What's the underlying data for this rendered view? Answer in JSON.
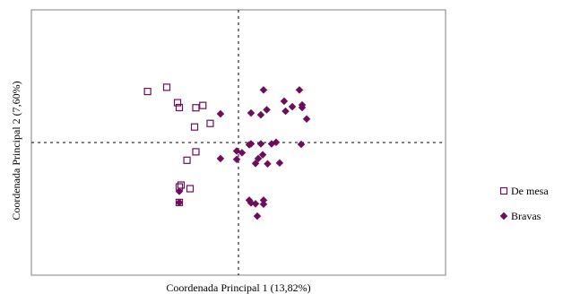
{
  "chart_data": {
    "type": "scatter",
    "xlabel": "Coordenada Principal 1 (13,82%)",
    "ylabel": "Coordenada Principal 2 (7,60%)",
    "xlim": [
      -1,
      1
    ],
    "ylim": [
      -1,
      1
    ],
    "grid": false,
    "reference_lines": {
      "x": 0,
      "y": 0,
      "style": "dotted"
    },
    "legend": "right",
    "series": [
      {
        "name": "De mesa",
        "marker": "open-square",
        "color": "#6b0f5a",
        "points": [
          [
            -0.768,
            0.73
          ],
          [
            -0.606,
            0.79
          ],
          [
            -0.515,
            0.57
          ],
          [
            -0.5,
            0.5
          ],
          [
            -0.36,
            0.497
          ],
          [
            -0.301,
            0.53
          ],
          [
            -0.371,
            0.222
          ],
          [
            -0.239,
            0.273
          ],
          [
            -0.36,
            -0.133
          ],
          [
            -0.435,
            -0.254
          ],
          [
            -0.485,
            -0.609
          ],
          [
            -0.5,
            -0.635
          ],
          [
            -0.409,
            -0.66
          ],
          [
            -0.5,
            -0.857
          ]
        ]
      },
      {
        "name": "Bravas",
        "marker": "diamond",
        "color": "#6b0f5a",
        "points": [
          [
            0.212,
            0.752
          ],
          [
            0.515,
            0.752
          ],
          [
            0.386,
            0.592
          ],
          [
            0.455,
            0.512
          ],
          [
            0.398,
            0.448
          ],
          [
            0.538,
            0.537
          ],
          [
            0.538,
            0.5
          ],
          [
            0.576,
            0.337
          ],
          [
            0.106,
            0.422
          ],
          [
            0.239,
            0.469
          ],
          [
            -0.152,
            0.41
          ],
          [
            0.189,
            0.396
          ],
          [
            0.53,
            -0.026
          ],
          [
            0.318,
            0.003
          ],
          [
            0.28,
            -0.019
          ],
          [
            0.189,
            -0.019
          ],
          [
            0.106,
            -0.019
          ],
          [
            0.091,
            -0.032
          ],
          [
            -0.015,
            -0.121
          ],
          [
            0.03,
            -0.146
          ],
          [
            0.205,
            -0.175
          ],
          [
            0.167,
            -0.229
          ],
          [
            -0.152,
            -0.229
          ],
          [
            -0.015,
            -0.241
          ],
          [
            0.144,
            -0.299
          ],
          [
            0.246,
            -0.305
          ],
          [
            0.348,
            -0.292
          ],
          [
            -0.5,
            -0.698
          ],
          [
            -0.5,
            -0.857
          ],
          [
            0.091,
            -0.825
          ],
          [
            0.212,
            -0.825
          ],
          [
            0.106,
            -0.863
          ],
          [
            0.144,
            -0.876
          ],
          [
            0.212,
            -0.882
          ],
          [
            0.159,
            -1.053
          ]
        ]
      }
    ]
  }
}
